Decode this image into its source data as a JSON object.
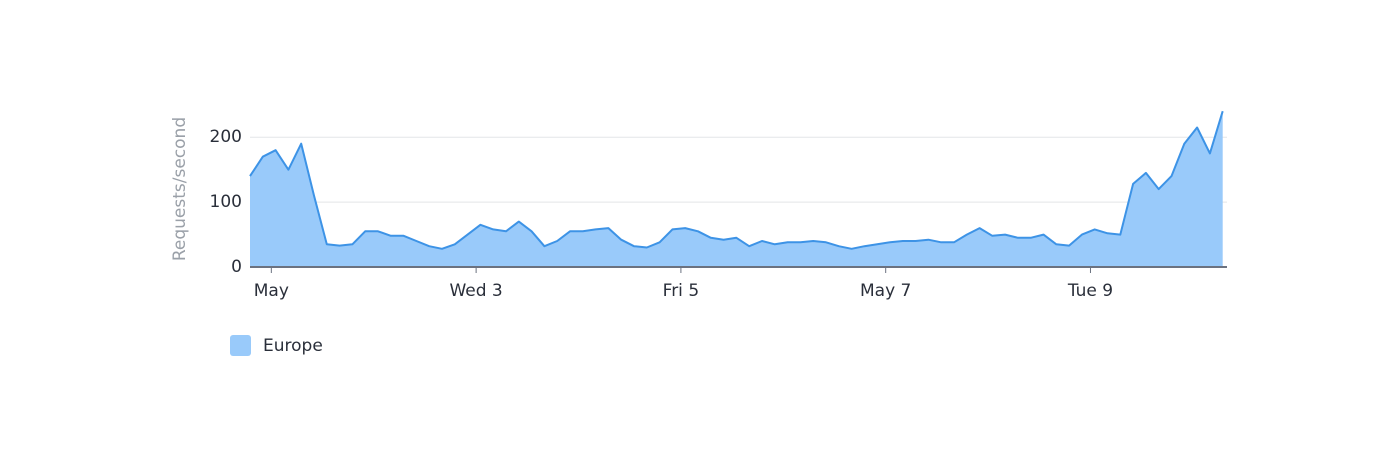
{
  "chart_data": {
    "type": "area",
    "y_axis_label": "Requests/second",
    "x": [
      "04-30 19:00",
      "04-30 22:00",
      "05-01 01:00",
      "05-01 04:00",
      "05-01 07:00",
      "05-01 10:00",
      "05-01 13:00",
      "05-01 16:00",
      "05-01 19:00",
      "05-01 22:00",
      "05-02 01:00",
      "05-02 04:00",
      "05-02 07:00",
      "05-02 10:00",
      "05-02 13:00",
      "05-02 16:00",
      "05-02 19:00",
      "05-02 22:00",
      "05-03 01:00",
      "05-03 04:00",
      "05-03 07:00",
      "05-03 10:00",
      "05-03 13:00",
      "05-03 16:00",
      "05-03 19:00",
      "05-03 22:00",
      "05-04 01:00",
      "05-04 04:00",
      "05-04 07:00",
      "05-04 10:00",
      "05-04 13:00",
      "05-04 16:00",
      "05-04 19:00",
      "05-04 22:00",
      "05-05 01:00",
      "05-05 04:00",
      "05-05 07:00",
      "05-05 10:00",
      "05-05 13:00",
      "05-05 16:00",
      "05-05 19:00",
      "05-05 22:00",
      "05-06 01:00",
      "05-06 04:00",
      "05-06 07:00",
      "05-06 10:00",
      "05-06 13:00",
      "05-06 16:00",
      "05-06 19:00",
      "05-06 22:00",
      "05-07 01:00",
      "05-07 04:00",
      "05-07 07:00",
      "05-07 10:00",
      "05-07 13:00",
      "05-07 16:00",
      "05-07 19:00",
      "05-07 22:00",
      "05-08 01:00",
      "05-08 04:00",
      "05-08 07:00",
      "05-08 10:00",
      "05-08 13:00",
      "05-08 16:00",
      "05-08 19:00",
      "05-08 22:00",
      "05-09 01:00",
      "05-09 04:00",
      "05-09 07:00",
      "05-09 10:00",
      "05-09 13:00",
      "05-09 16:00",
      "05-09 19:00",
      "05-09 22:00",
      "05-10 01:00",
      "05-10 04:00",
      "05-10 07:00"
    ],
    "series": [
      {
        "name": "Europe",
        "color": "#99cafa",
        "line_color": "#3d93e6",
        "values": [
          140,
          170,
          180,
          150,
          190,
          110,
          35,
          33,
          35,
          55,
          55,
          48,
          48,
          40,
          32,
          28,
          35,
          50,
          65,
          58,
          55,
          70,
          55,
          32,
          40,
          55,
          55,
          58,
          60,
          42,
          32,
          30,
          38,
          58,
          60,
          55,
          45,
          42,
          45,
          32,
          40,
          35,
          38,
          38,
          40,
          38,
          32,
          28,
          32,
          35,
          38,
          40,
          40,
          42,
          38,
          38,
          50,
          60,
          48,
          50,
          45,
          45,
          50,
          35,
          33,
          50,
          58,
          52,
          50,
          128,
          145,
          120,
          140,
          190,
          215,
          175,
          240
        ]
      }
    ],
    "xlim": [
      "04-30 19:00",
      "05-10 08:00"
    ],
    "xticks": [
      {
        "value": "05-01 00:00",
        "label": "May"
      },
      {
        "value": "05-03 00:00",
        "label": "Wed 3"
      },
      {
        "value": "05-05 00:00",
        "label": "Fri 5"
      },
      {
        "value": "05-07 00:00",
        "label": "May 7"
      },
      {
        "value": "05-09 00:00",
        "label": "Tue 9"
      }
    ],
    "ylim": [
      0,
      245
    ],
    "yticks": [
      0,
      100,
      200
    ],
    "grid": true
  }
}
